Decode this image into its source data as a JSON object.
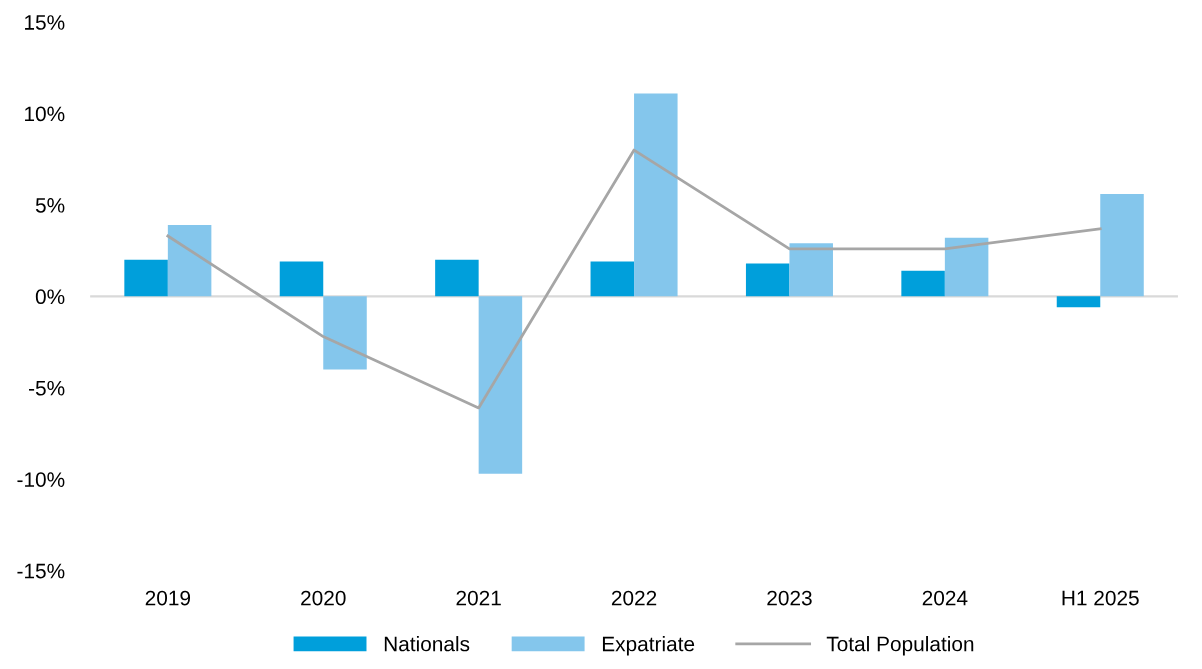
{
  "chart_data": {
    "type": "bar",
    "categories": [
      "2019",
      "2020",
      "2021",
      "2022",
      "2023",
      "2024",
      "H1 2025"
    ],
    "series": [
      {
        "name": "Nationals",
        "color": "#009fdb",
        "values": [
          2.0,
          1.9,
          2.0,
          1.9,
          1.8,
          1.4,
          -0.6
        ]
      },
      {
        "name": "Expatriate",
        "color": "#84c6ec",
        "values": [
          3.9,
          -4.0,
          -9.7,
          11.1,
          2.9,
          3.2,
          5.6
        ]
      },
      {
        "name": "Total Population",
        "type": "line",
        "color": "#a6a6a6",
        "values": [
          3.3,
          -2.2,
          -6.1,
          8.0,
          2.6,
          2.6,
          3.7
        ]
      }
    ],
    "ylim": [
      -15,
      15
    ],
    "yticks": [
      {
        "value": -15,
        "label": "-15%"
      },
      {
        "value": -10,
        "label": "-10%"
      },
      {
        "value": -5,
        "label": "-5%"
      },
      {
        "value": 0,
        "label": "0%"
      },
      {
        "value": 5,
        "label": "5%"
      },
      {
        "value": 10,
        "label": "10%"
      },
      {
        "value": 15,
        "label": "15%"
      }
    ],
    "ref_lines": [
      {
        "axis": "y",
        "value": 0,
        "color": "#d9d9d9"
      }
    ],
    "grid": false,
    "legend": "bottom",
    "marker": "none",
    "line_style": "solid"
  }
}
